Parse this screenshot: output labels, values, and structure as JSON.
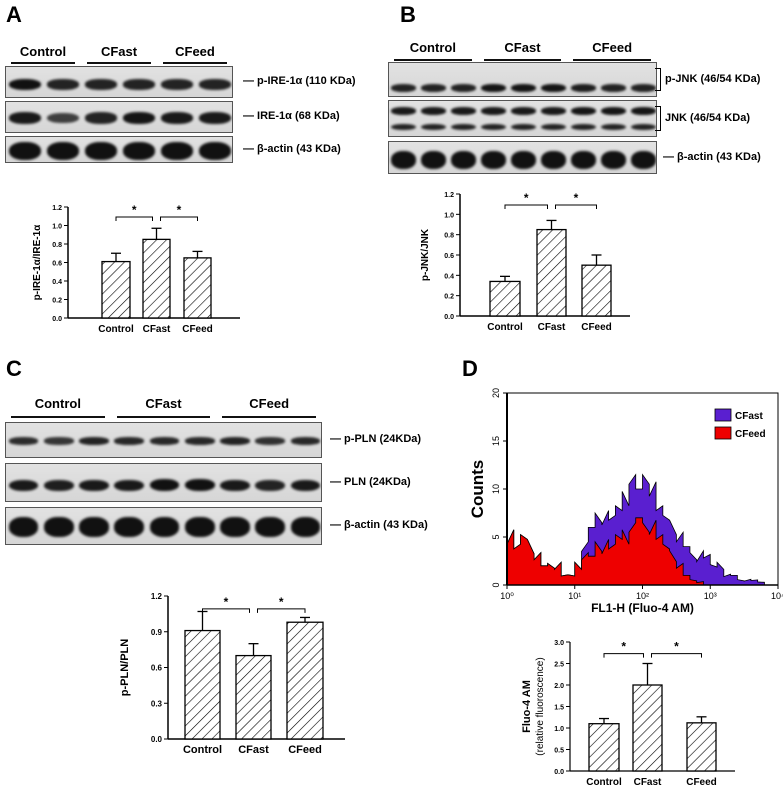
{
  "panels": [
    {
      "id": "A",
      "label": "A",
      "groups": [
        "Control",
        "CFast",
        "CFeed"
      ],
      "lanes_per_group": 2,
      "blots": [
        {
          "label": "p-IRE-1α (110 KDa)",
          "bands": [
            [
              1,
              0.8,
              0.8,
              0.8,
              0.8,
              0.8
            ]
          ],
          "bracket": false
        },
        {
          "label": "IRE-1α (68 KDa)",
          "bands": [
            [
              0.9,
              0.5,
              0.8,
              0.95,
              0.9,
              0.9
            ]
          ],
          "bracket": false
        },
        {
          "label": "β-actin (43 KDa)",
          "bands": [
            [
              1,
              1,
              1,
              1,
              1,
              1
            ]
          ],
          "bracket": false
        }
      ]
    },
    {
      "id": "B",
      "label": "B",
      "groups": [
        "Control",
        "CFast",
        "CFeed"
      ],
      "lanes_per_group": 3,
      "blots": [
        {
          "label": "p-JNK (46/54 KDa)",
          "bands": [
            [
              0.8,
              0.8,
              0.8,
              0.95,
              0.95,
              0.95,
              0.85,
              0.8,
              0.8
            ]
          ],
          "bracket": true
        },
        {
          "label": "JNK (46/54 KDa)",
          "bands": [
            [
              0.9,
              0.9,
              0.9,
              0.9,
              0.9,
              0.9,
              0.95,
              0.95,
              0.95
            ],
            [
              0.8,
              0.8,
              0.8,
              0.8,
              0.8,
              0.8,
              0.8,
              0.8,
              0.8
            ]
          ],
          "bracket": true
        },
        {
          "label": "β-actin (43 KDa)",
          "bands": [
            [
              1,
              1,
              1,
              1,
              1,
              1,
              1,
              1,
              1
            ]
          ],
          "bracket": false
        }
      ]
    },
    {
      "id": "C",
      "label": "C",
      "groups": [
        "Control",
        "CFast",
        "CFeed"
      ],
      "lanes_per_group": 3,
      "blots": [
        {
          "label": "p-PLN (24KDa)",
          "bands": [
            [
              0.7,
              0.6,
              0.8,
              0.75,
              0.75,
              0.75,
              0.8,
              0.65,
              0.75
            ]
          ],
          "bracket": false
        },
        {
          "label": "PLN (24KDa)",
          "bands": [
            [
              0.9,
              0.85,
              0.9,
              0.9,
              1,
              1,
              0.9,
              0.8,
              0.9
            ]
          ],
          "bracket": false
        },
        {
          "label": "β-actin (43 KDa)",
          "bands": [
            [
              1,
              1,
              1,
              1,
              1,
              1,
              1,
              1,
              1
            ]
          ],
          "bracket": false
        }
      ]
    },
    {
      "id": "D",
      "label": "D"
    }
  ],
  "colors": {
    "cfast": "#5a1fd0",
    "cfeed": "#ee0000",
    "bar_fill": "#ffffff",
    "ink": "#000000"
  },
  "chart_data": [
    {
      "panel": "A",
      "type": "bar",
      "categories": [
        "Control",
        "CFast",
        "CFeed"
      ],
      "values": [
        0.61,
        0.85,
        0.65
      ],
      "errors": [
        0.09,
        0.12,
        0.07
      ],
      "ylabel": "p-IRE-1α/IRE-1α",
      "ylim": [
        0,
        1.2
      ],
      "yticks": [
        "0.0",
        "0.2",
        "0.4",
        "0.6",
        "0.8",
        "1.0",
        "1.2"
      ],
      "fill": "hatched",
      "significance": [
        {
          "from": 0,
          "to": 1,
          "label": "*"
        },
        {
          "from": 1,
          "to": 2,
          "label": "*"
        }
      ]
    },
    {
      "panel": "B",
      "type": "bar",
      "categories": [
        "Control",
        "CFast",
        "CFeed"
      ],
      "values": [
        0.34,
        0.85,
        0.5
      ],
      "errors": [
        0.05,
        0.09,
        0.1
      ],
      "ylabel": "p-JNK/JNK",
      "ylim": [
        0,
        1.2
      ],
      "yticks": [
        "0.0",
        "0.2",
        "0.4",
        "0.6",
        "0.8",
        "1.0",
        "1.2"
      ],
      "fill": "hatched",
      "significance": [
        {
          "from": 0,
          "to": 1,
          "label": "*"
        },
        {
          "from": 1,
          "to": 2,
          "label": "*"
        }
      ]
    },
    {
      "panel": "C",
      "type": "bar",
      "categories": [
        "Control",
        "CFast",
        "CFeed"
      ],
      "values": [
        0.91,
        0.7,
        0.98
      ],
      "errors": [
        0.16,
        0.1,
        0.04
      ],
      "ylabel": "p-PLN/PLN",
      "ylim": [
        0,
        1.2
      ],
      "yticks": [
        "0.0",
        "0.3",
        "0.6",
        "0.9",
        "1.2"
      ],
      "fill": "hatched",
      "significance": [
        {
          "from": 0,
          "to": 1,
          "label": "*"
        },
        {
          "from": 1,
          "to": 2,
          "label": "*"
        }
      ]
    },
    {
      "panel": "D",
      "type": "area",
      "xscale": "log",
      "xlabel": "FL1-H (Fluo-4 AM)",
      "ylabel": "Counts",
      "xlim": [
        1,
        10000
      ],
      "ylim": [
        0,
        20
      ],
      "xticks": [
        "10⁰",
        "10¹",
        "10²",
        "10³",
        "10⁴"
      ],
      "yticks": [
        "0",
        "5",
        "10",
        "15",
        "20"
      ],
      "legend": "top-right",
      "x_log10": [
        0,
        0.1,
        0.2,
        0.3,
        0.4,
        0.5,
        0.6,
        0.7,
        0.8,
        0.9,
        1.0,
        1.1,
        1.2,
        1.3,
        1.4,
        1.5,
        1.6,
        1.7,
        1.8,
        1.9,
        2.0,
        2.1,
        2.2,
        2.3,
        2.4,
        2.5,
        2.6,
        2.7,
        2.8,
        2.9,
        3.0,
        3.1,
        3.2,
        3.3,
        3.4,
        3.5,
        3.6,
        3.7,
        3.8,
        3.9,
        4.0
      ],
      "series": [
        {
          "name": "CFast",
          "color": "#5a1fd0",
          "values": [
            5,
            4,
            5,
            4,
            3,
            2,
            2,
            2,
            1,
            1,
            2,
            4,
            6,
            7,
            7,
            7,
            8,
            9,
            11,
            10,
            11,
            10,
            8,
            7,
            6,
            5,
            4,
            3,
            3,
            3,
            2,
            2,
            1,
            1,
            0.5,
            0.5,
            0.5,
            0.3,
            0,
            0,
            0
          ]
        },
        {
          "name": "CFeed",
          "color": "#ee0000",
          "values": [
            5,
            4,
            5,
            4,
            3,
            2,
            2,
            2,
            1,
            1,
            2,
            3,
            3,
            4,
            4,
            4,
            5,
            5,
            6,
            7,
            6,
            6,
            5,
            4,
            3,
            2,
            1,
            0.5,
            0.3,
            0,
            0,
            0,
            0,
            0,
            0,
            0,
            0,
            0,
            0,
            0,
            0
          ]
        }
      ]
    },
    {
      "panel": "D",
      "type": "bar",
      "categories": [
        "Control",
        "CFast",
        "CFeed"
      ],
      "values": [
        1.1,
        2.0,
        1.12
      ],
      "errors": [
        0.12,
        0.5,
        0.14
      ],
      "ylabel": "Fluo-4 AM",
      "ylabel2": "(relative fluoroscence)",
      "ylim": [
        0,
        3.0
      ],
      "yticks": [
        "0.0",
        "0.5",
        "1.0",
        "1.5",
        "2.0",
        "2.5",
        "3.0"
      ],
      "fill": "hatched",
      "significance": [
        {
          "from": 0,
          "to": 1,
          "label": "*"
        },
        {
          "from": 1,
          "to": 2,
          "label": "*"
        }
      ]
    }
  ]
}
